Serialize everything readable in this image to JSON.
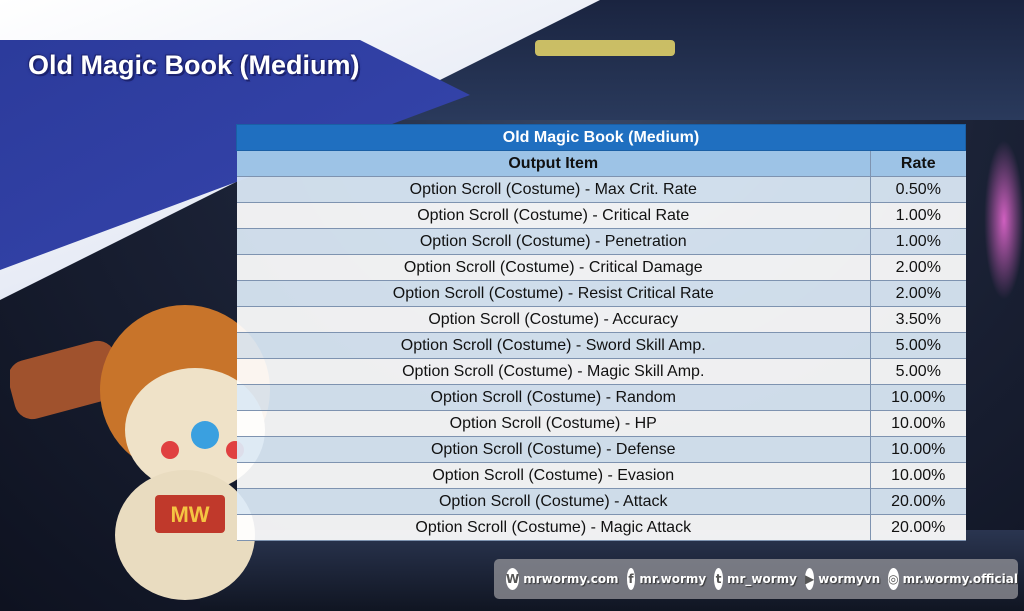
{
  "page_title": "Old Magic Book (Medium)",
  "table": {
    "title": "Old Magic Book (Medium)",
    "headers": [
      "Output Item",
      "Rate"
    ],
    "rows": [
      {
        "item": "Option Scroll (Costume) - Max Crit. Rate",
        "rate": "0.50%"
      },
      {
        "item": "Option Scroll (Costume) - Critical Rate",
        "rate": "1.00%"
      },
      {
        "item": "Option Scroll (Costume) - Penetration",
        "rate": "1.00%"
      },
      {
        "item": "Option Scroll (Costume) - Critical Damage",
        "rate": "2.00%"
      },
      {
        "item": "Option Scroll (Costume) - Resist Critical Rate",
        "rate": "2.00%"
      },
      {
        "item": "Option Scroll (Costume) - Accuracy",
        "rate": "3.50%"
      },
      {
        "item": "Option Scroll (Costume) - Sword Skill Amp.",
        "rate": "5.00%"
      },
      {
        "item": "Option Scroll (Costume) - Magic Skill Amp.",
        "rate": "5.00%"
      },
      {
        "item": "Option Scroll (Costume) - Random",
        "rate": "10.00%"
      },
      {
        "item": "Option Scroll (Costume) - HP",
        "rate": "10.00%"
      },
      {
        "item": "Option Scroll (Costume) - Defense",
        "rate": "10.00%"
      },
      {
        "item": "Option Scroll (Costume) - Evasion",
        "rate": "10.00%"
      },
      {
        "item": "Option Scroll (Costume) - Attack",
        "rate": "20.00%"
      },
      {
        "item": "Option Scroll (Costume) - Magic Attack",
        "rate": "20.00%"
      }
    ]
  },
  "mascot": {
    "badge": "MW"
  },
  "social": [
    {
      "icon": "wordpress-icon",
      "glyph": "W",
      "label": "mrwormy.com"
    },
    {
      "icon": "facebook-icon",
      "glyph": "f",
      "label": "mr.wormy"
    },
    {
      "icon": "twitter-icon",
      "glyph": "t",
      "label": "mr_wormy"
    },
    {
      "icon": "youtube-icon",
      "glyph": "▶",
      "label": "wormyvn"
    },
    {
      "icon": "instagram-icon",
      "glyph": "◎",
      "label": "mr.wormy.official"
    }
  ],
  "colors": {
    "title_bar": "#1f6fc0",
    "header": "#9dc3e6",
    "row_alt": "#ddebf7"
  }
}
